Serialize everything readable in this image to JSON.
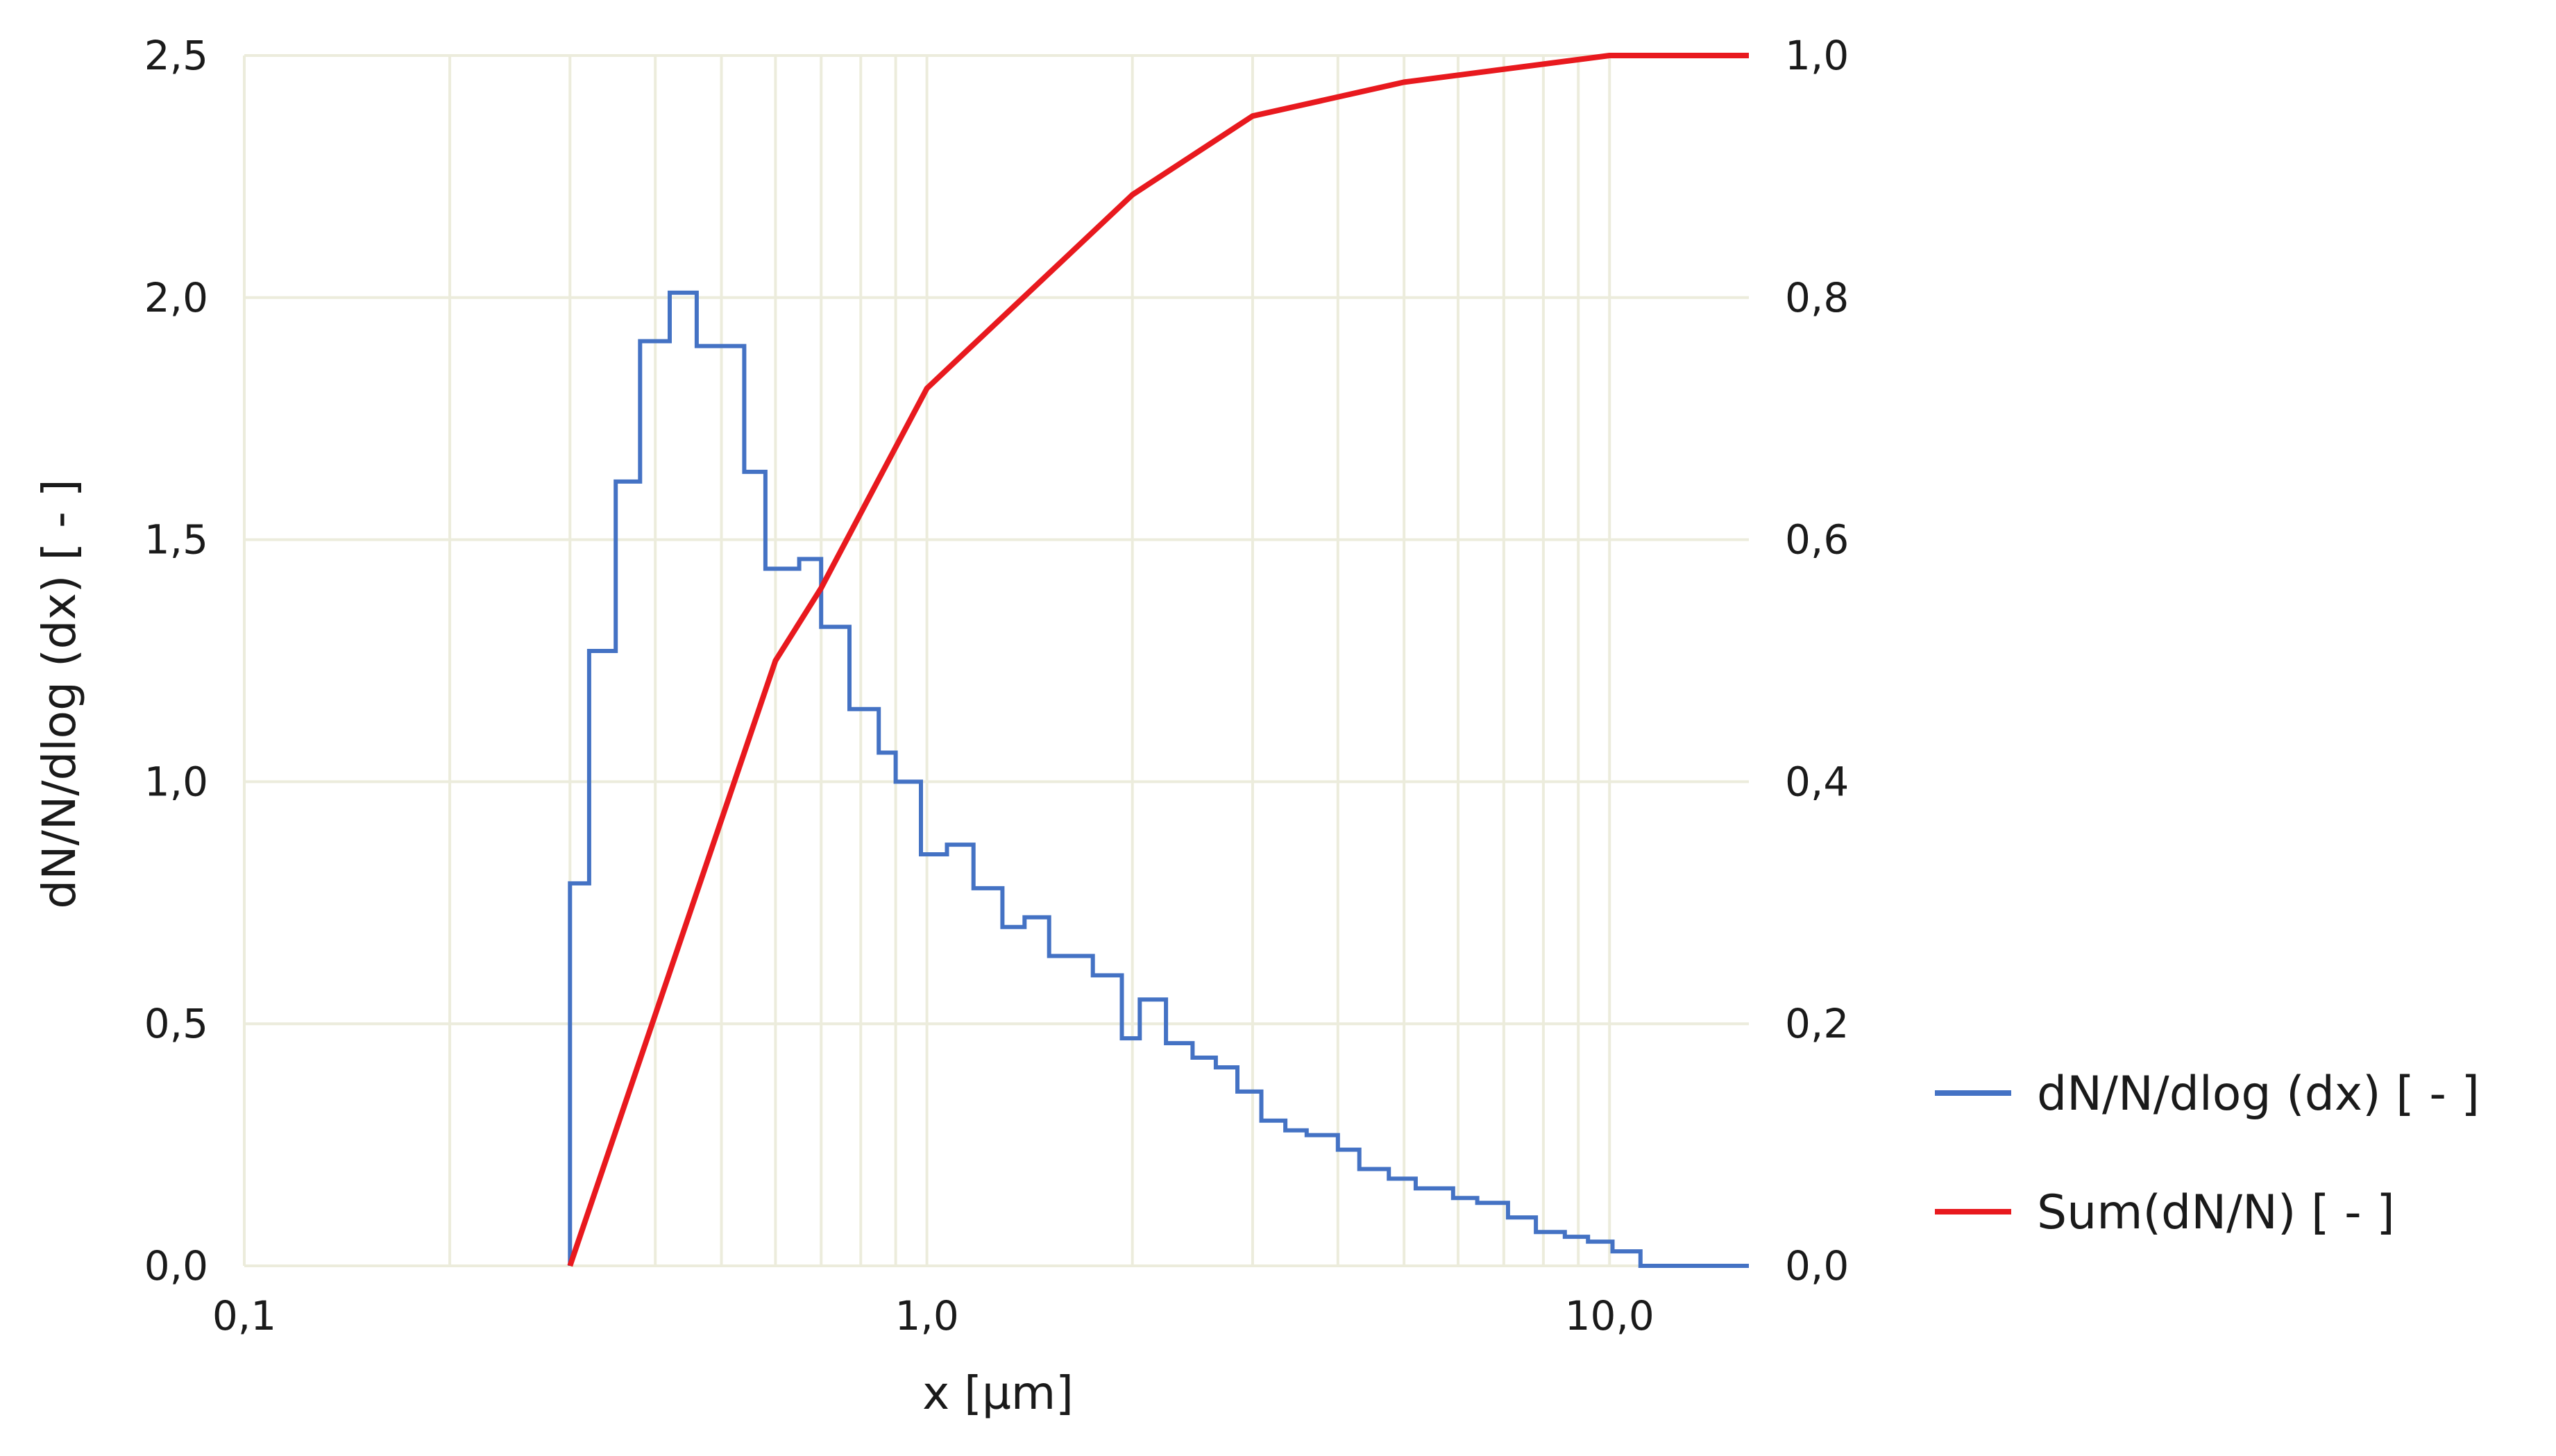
{
  "chart_data": {
    "type": "line",
    "title": "",
    "xlabel": "x [µm]",
    "ylabel_left": "dN/N/dlog (dx) [ - ]",
    "ylabel_right": "",
    "x_scale": "log",
    "xlim": [
      0.1,
      16
    ],
    "ylim_left": [
      0,
      2.5
    ],
    "ylim_right": [
      0,
      1.0
    ],
    "x_tick_labels": [
      "0,1",
      "1,0",
      "10,0"
    ],
    "y_left_tick_labels": [
      "0,0",
      "0,5",
      "1,0",
      "1,5",
      "2,0",
      "2,5"
    ],
    "y_right_tick_labels": [
      "0,0",
      "0,2",
      "0,4",
      "0,6",
      "0,8",
      "1,0"
    ],
    "grid": true,
    "legend_position": "right",
    "series": [
      {
        "name": "dN/N/dlog (dx) [ - ]",
        "axis": "left",
        "style": "step",
        "color": "#4472C4",
        "bin_edges": [
          0.3,
          0.32,
          0.35,
          0.38,
          0.42,
          0.46,
          0.54,
          0.58,
          0.65,
          0.7,
          0.77,
          0.85,
          0.9,
          0.98,
          1.07,
          1.17,
          1.29,
          1.39,
          1.51,
          1.75,
          1.93,
          2.05,
          2.24,
          2.45,
          2.65,
          2.85,
          3.09,
          3.35,
          3.6,
          4.0,
          4.3,
          4.75,
          5.2,
          5.9,
          6.4,
          7.1,
          7.8,
          8.6,
          9.3,
          10.1,
          11.1,
          12.0,
          16.0
        ],
        "values": [
          0.79,
          1.27,
          1.62,
          1.91,
          2.01,
          1.9,
          1.64,
          1.44,
          1.46,
          1.32,
          1.15,
          1.06,
          1.0,
          0.85,
          0.87,
          0.78,
          0.7,
          0.72,
          0.64,
          0.6,
          0.47,
          0.55,
          0.46,
          0.43,
          0.41,
          0.36,
          0.3,
          0.28,
          0.27,
          0.24,
          0.2,
          0.18,
          0.16,
          0.14,
          0.13,
          0.1,
          0.07,
          0.06,
          0.05,
          0.03,
          0.0,
          0.0
        ]
      },
      {
        "name": "Sum(dN/N) [ - ]",
        "axis": "right",
        "style": "line",
        "color": "#E8191E",
        "x": [
          0.3,
          0.6,
          0.7,
          0.85,
          1.0,
          2.0,
          3.0,
          5.0,
          10.0,
          16.0
        ],
        "values": [
          0.0,
          0.5,
          0.56,
          0.65,
          0.725,
          0.885,
          0.95,
          0.978,
          1.0,
          1.0
        ]
      }
    ]
  }
}
